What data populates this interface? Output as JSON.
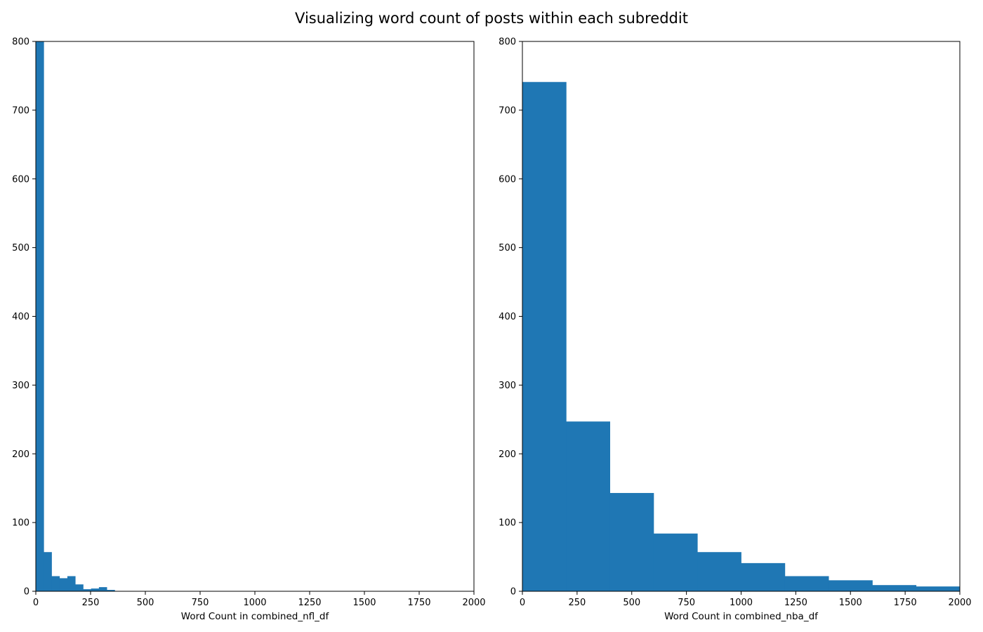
{
  "figure": {
    "title": "Visualizing word count of posts within each subreddit"
  },
  "colors": {
    "bar": "#1f77b4"
  },
  "chart_data": [
    {
      "type": "bar",
      "title": "",
      "xlabel": "Word Count in combined_nfl_df",
      "ylabel": "",
      "xlim": [
        0,
        2000
      ],
      "ylim": [
        0,
        800
      ],
      "xticks": [
        0,
        250,
        500,
        750,
        1000,
        1250,
        1500,
        1750,
        2000
      ],
      "yticks": [
        0,
        100,
        200,
        300,
        400,
        500,
        600,
        700,
        800
      ],
      "grid": false,
      "bins": [
        {
          "x0": 0,
          "x1": 36,
          "count": 800
        },
        {
          "x0": 36,
          "x1": 72,
          "count": 57
        },
        {
          "x0": 72,
          "x1": 108,
          "count": 22
        },
        {
          "x0": 108,
          "x1": 144,
          "count": 19
        },
        {
          "x0": 144,
          "x1": 180,
          "count": 22
        },
        {
          "x0": 180,
          "x1": 216,
          "count": 10
        },
        {
          "x0": 216,
          "x1": 252,
          "count": 3
        },
        {
          "x0": 252,
          "x1": 288,
          "count": 4
        },
        {
          "x0": 288,
          "x1": 324,
          "count": 6
        },
        {
          "x0": 324,
          "x1": 360,
          "count": 2
        },
        {
          "x0": 360,
          "x1": 396,
          "count": 0.5
        }
      ]
    },
    {
      "type": "bar",
      "title": "",
      "xlabel": "Word Count in combined_nba_df",
      "ylabel": "",
      "xlim": [
        0,
        2000
      ],
      "ylim": [
        0,
        800
      ],
      "xticks": [
        0,
        250,
        500,
        750,
        1000,
        1250,
        1500,
        1750,
        2000
      ],
      "yticks": [
        0,
        100,
        200,
        300,
        400,
        500,
        600,
        700,
        800
      ],
      "grid": false,
      "bins": [
        {
          "x0": 0,
          "x1": 200,
          "count": 741
        },
        {
          "x0": 200,
          "x1": 400,
          "count": 247
        },
        {
          "x0": 400,
          "x1": 600,
          "count": 143
        },
        {
          "x0": 600,
          "x1": 800,
          "count": 84
        },
        {
          "x0": 800,
          "x1": 1000,
          "count": 57
        },
        {
          "x0": 1000,
          "x1": 1200,
          "count": 41
        },
        {
          "x0": 1200,
          "x1": 1400,
          "count": 22
        },
        {
          "x0": 1400,
          "x1": 1600,
          "count": 16
        },
        {
          "x0": 1600,
          "x1": 1800,
          "count": 9
        },
        {
          "x0": 1800,
          "x1": 2000,
          "count": 7
        }
      ]
    }
  ]
}
